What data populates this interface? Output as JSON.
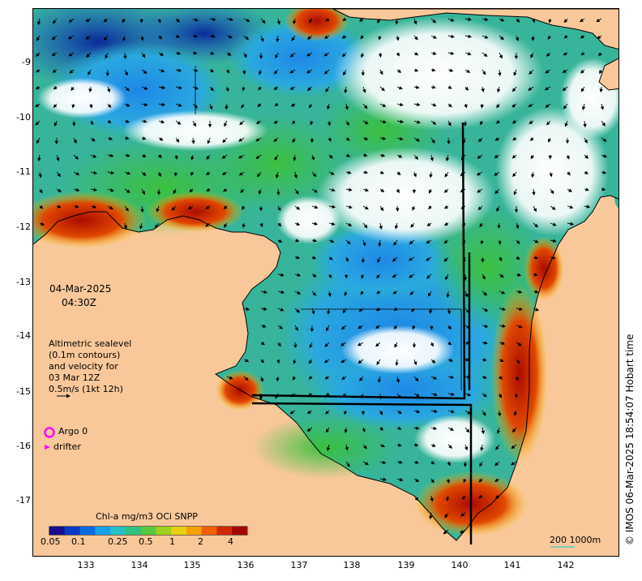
{
  "map": {
    "date": "04-Mar-2025",
    "time": "04:30Z",
    "lat_ticks": [
      "-9",
      "-10",
      "-11",
      "-12",
      "-13",
      "-14",
      "-15",
      "-16",
      "-17"
    ],
    "lon_ticks": [
      "133",
      "134",
      "135",
      "136",
      "137",
      "138",
      "139",
      "140",
      "141",
      "142"
    ],
    "sealevel_info": [
      "Altimetric sealevel",
      "(0.1m contours)",
      "and velocity for",
      "03 Mar 12Z",
      "0.5m/s (1kt 12h)"
    ],
    "legend": {
      "argo": "Argo 0",
      "drifter": "drifter"
    },
    "colorbar": {
      "title": "Chl-a mg/m3 OCi SNPP",
      "ticks": [
        "0.05",
        "0.1",
        "0.25",
        "0.5",
        "1",
        "2",
        "4"
      ]
    },
    "scale_label": "200  1000m",
    "credit": "© IMOS 06-Mar-2025 18:54:07 Hobart time",
    "colors": {
      "land": "#f9c89a",
      "cloud": "#ffffff",
      "argo": "#ff00ff",
      "drifter": "#ff00ff"
    }
  }
}
